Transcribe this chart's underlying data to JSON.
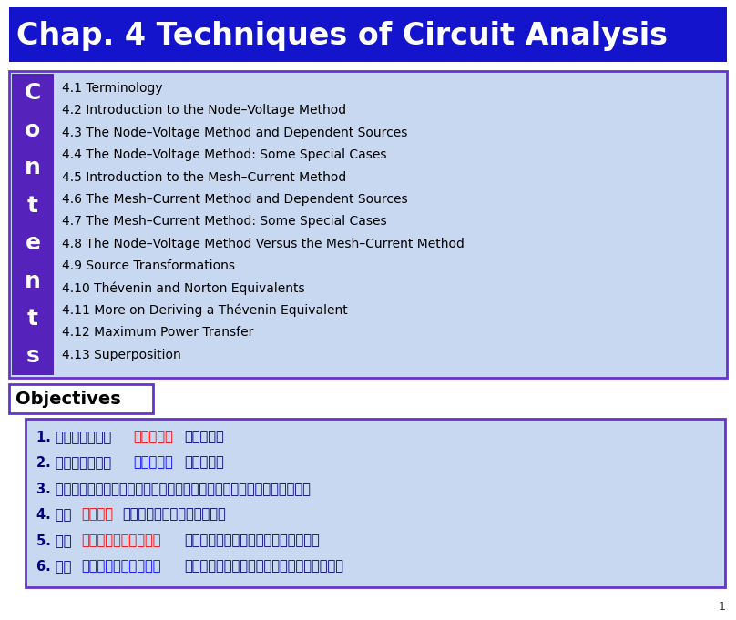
{
  "title": "Chap. 4 Techniques of Circuit Analysis",
  "title_bg": "#1414CC",
  "title_color": "#FFFFFF",
  "bg_color": "#FFFFFF",
  "contents_items": [
    "4.1 Terminology",
    "4.2 Introduction to the Node–Voltage Method",
    "4.3 The Node–Voltage Method and Dependent Sources",
    "4.4 The Node–Voltage Method: Some Special Cases",
    "4.5 Introduction to the Mesh–Current Method",
    "4.6 The Mesh–Current Method and Dependent Sources",
    "4.7 The Mesh–Current Method: Some Special Cases",
    "4.8 The Node–Voltage Method Versus the Mesh–Current Method",
    "4.9 Source Transformations",
    "4.10 Thévenin and Norton Equivalents",
    "4.11 More on Deriving a Thévenin Equivalent",
    "4.12 Maximum Power Transfer",
    "4.13 Superposition"
  ],
  "objectives_label": "Objectives",
  "objectives_items": [
    {
      "parts": [
        {
          "text": "1. 了解並能夠使用",
          "color": "#000080"
        },
        {
          "text": "節點電壓法",
          "color": "#FF0000"
        },
        {
          "text": "求解電路。",
          "color": "#000080"
        }
      ]
    },
    {
      "parts": [
        {
          "text": "2. 了解並能夠使用",
          "color": "#000080"
        },
        {
          "text": "網目電流法",
          "color": "#0000FF"
        },
        {
          "text": "求解電路。",
          "color": "#000080"
        }
      ]
    },
    {
      "parts": [
        {
          "text": "3. 對於特定電路能夠決定節點電壓法或網目電流法何者是較佳的求解方式。",
          "color": "#000080"
        }
      ]
    },
    {
      "parts": [
        {
          "text": "4. 了解",
          "color": "#000080"
        },
        {
          "text": "電源轉換",
          "color": "#FF0000"
        },
        {
          "text": "，並能夠使用它來求解電路。",
          "color": "#000080"
        }
      ]
    },
    {
      "parts": [
        {
          "text": "5. 了解",
          "color": "#000080"
        },
        {
          "text": "戴維寧和諾頓等效電路",
          "color": "#FF0000"
        },
        {
          "text": "的觀念，並能针對電路建立等效電路。",
          "color": "#000080"
        }
      ]
    },
    {
      "parts": [
        {
          "text": "6. 了解",
          "color": "#000080"
        },
        {
          "text": "電阻負載最大功率轉移",
          "color": "#0000FF"
        },
        {
          "text": "之情況，並能計算満足此情況之負載電阻値。",
          "color": "#000080"
        }
      ]
    }
  ],
  "box_border_color": "#6633CC",
  "contents_box_bg": "#C8D8F0",
  "contents_letter_bg": "#5522BB",
  "contents_letter_color": "#FFFFFF",
  "objectives_box_bg": "#C8D8F0",
  "page_number": "1"
}
